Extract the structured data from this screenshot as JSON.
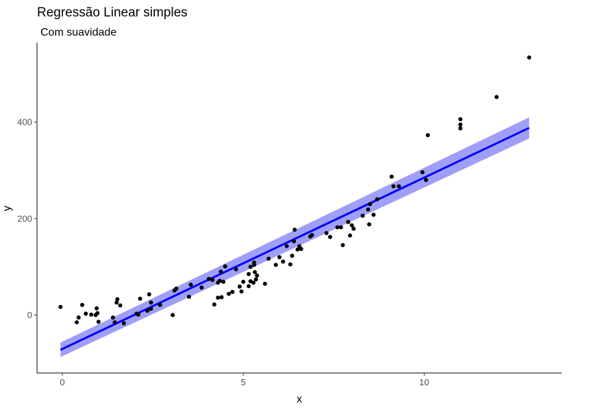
{
  "chart_data": {
    "type": "scatter",
    "title": "Regressão Linear simples",
    "subtitle": "Com suavidade",
    "xlabel": "x",
    "ylabel": "y",
    "xlim": [
      -0.7,
      13.8
    ],
    "ylim": [
      -120,
      565
    ],
    "xticks": [
      0,
      5,
      10
    ],
    "yticks": [
      0,
      200,
      400
    ],
    "grid": false,
    "colors": {
      "points": "#000000",
      "line": "#0000ff",
      "band": "#9f9ff8"
    },
    "points": [
      [
        -0.05,
        17
      ],
      [
        0.4,
        -15
      ],
      [
        0.45,
        -5
      ],
      [
        0.55,
        21
      ],
      [
        0.65,
        3
      ],
      [
        0.8,
        1
      ],
      [
        0.92,
        0
      ],
      [
        0.95,
        14
      ],
      [
        0.97,
        4
      ],
      [
        1.0,
        -14
      ],
      [
        1.4,
        -5
      ],
      [
        1.45,
        -15
      ],
      [
        1.5,
        26
      ],
      [
        1.52,
        33
      ],
      [
        1.6,
        20
      ],
      [
        1.7,
        -17
      ],
      [
        2.05,
        3
      ],
      [
        2.1,
        1
      ],
      [
        2.15,
        34
      ],
      [
        2.35,
        9
      ],
      [
        2.4,
        43
      ],
      [
        2.45,
        26
      ],
      [
        2.45,
        13
      ],
      [
        2.7,
        21
      ],
      [
        3.05,
        0
      ],
      [
        3.1,
        51
      ],
      [
        3.15,
        55
      ],
      [
        3.5,
        38
      ],
      [
        3.55,
        63
      ],
      [
        3.85,
        57
      ],
      [
        4.05,
        75
      ],
      [
        4.15,
        73
      ],
      [
        4.2,
        22
      ],
      [
        4.3,
        36
      ],
      [
        4.3,
        67
      ],
      [
        4.35,
        71
      ],
      [
        4.38,
        90
      ],
      [
        4.4,
        37
      ],
      [
        4.45,
        69
      ],
      [
        4.5,
        101
      ],
      [
        4.6,
        44
      ],
      [
        4.7,
        48
      ],
      [
        4.8,
        95
      ],
      [
        4.9,
        59
      ],
      [
        4.95,
        49
      ],
      [
        5.0,
        69
      ],
      [
        5.15,
        60
      ],
      [
        5.15,
        85
      ],
      [
        5.2,
        100
      ],
      [
        5.2,
        70
      ],
      [
        5.28,
        67
      ],
      [
        5.3,
        109
      ],
      [
        5.3,
        104
      ],
      [
        5.32,
        89
      ],
      [
        5.35,
        74
      ],
      [
        5.38,
        82
      ],
      [
        5.6,
        65
      ],
      [
        5.7,
        117
      ],
      [
        5.9,
        104
      ],
      [
        6.0,
        120
      ],
      [
        6.1,
        111
      ],
      [
        6.2,
        143
      ],
      [
        6.3,
        105
      ],
      [
        6.35,
        123
      ],
      [
        6.4,
        153
      ],
      [
        6.42,
        177
      ],
      [
        6.5,
        136
      ],
      [
        6.55,
        143
      ],
      [
        6.6,
        137
      ],
      [
        6.85,
        163
      ],
      [
        6.9,
        166
      ],
      [
        7.3,
        170
      ],
      [
        7.4,
        162
      ],
      [
        7.6,
        182
      ],
      [
        7.7,
        182
      ],
      [
        7.75,
        145
      ],
      [
        7.9,
        193
      ],
      [
        7.95,
        165
      ],
      [
        8.0,
        186
      ],
      [
        8.05,
        179
      ],
      [
        8.3,
        206
      ],
      [
        8.45,
        219
      ],
      [
        8.48,
        188
      ],
      [
        8.5,
        230
      ],
      [
        8.6,
        208
      ],
      [
        8.7,
        240
      ],
      [
        9.1,
        287
      ],
      [
        9.15,
        267
      ],
      [
        9.3,
        267
      ],
      [
        9.95,
        296
      ],
      [
        10.05,
        280
      ],
      [
        10.1,
        373
      ],
      [
        11.0,
        406
      ],
      [
        11.0,
        395
      ],
      [
        11.0,
        387
      ],
      [
        12.0,
        452
      ],
      [
        12.9,
        534
      ]
    ],
    "fit_line": {
      "x": [
        -0.05,
        12.9
      ],
      "y": [
        -72,
        388
      ]
    },
    "confidence_band": {
      "lower": [
        -87,
        366
      ],
      "upper": [
        -57,
        410
      ]
    }
  }
}
